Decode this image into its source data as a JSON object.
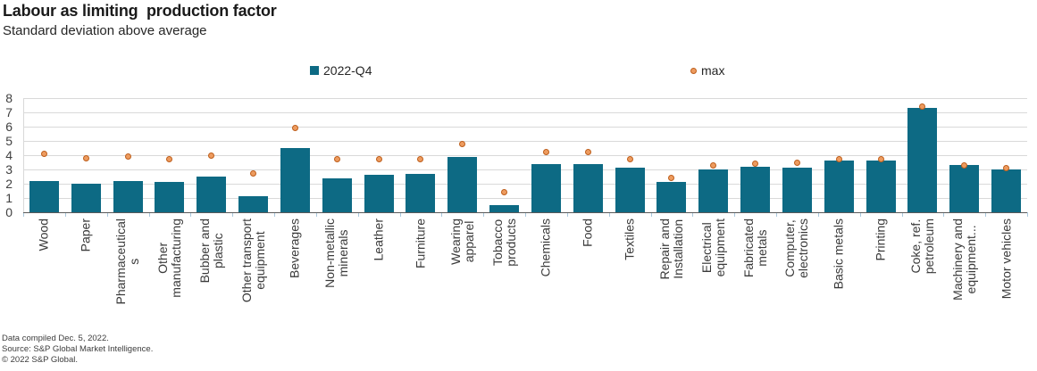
{
  "title": "Labour as limiting  production factor",
  "subtitle": "Standard deviation above average",
  "legend": {
    "series1_label": "2022-Q4",
    "series2_label": "max"
  },
  "colors": {
    "bar": "#0d6a84",
    "dot_fill": "#ed9b5f",
    "dot_border": "#bd5e1b",
    "gridline": "#d9d9d9",
    "axis": "#595959"
  },
  "footer": {
    "line1": "Data compiled Dec. 5, 2022.",
    "line2": "Source: S&P Global Market Intelligence.",
    "line3": "© 2022 S&P Global."
  },
  "chart_data": {
    "type": "bar",
    "title": "Labour as limiting production factor",
    "subtitle": "Standard deviation above average",
    "xlabel": "",
    "ylabel": "Standard deviation above average",
    "ylim": [
      0,
      8
    ],
    "yticks": [
      0,
      1,
      2,
      3,
      4,
      5,
      6,
      7,
      8
    ],
    "grid": true,
    "legend_position": "top",
    "categories": [
      "Wood",
      "Paper",
      "Pharmaceuticals",
      "Other manufacturing",
      "Bubber and plastic",
      "Other transport equipment",
      "Beverages",
      "Non-metallic minerals",
      "Leather",
      "Furniture",
      "Wearing apparel",
      "Tobacco products",
      "Chemicals",
      "Food",
      "Textiles",
      "Repair and Installation",
      "Electrical equipment",
      "Fabricated metals",
      "Computer, electronics",
      "Basic metals",
      "Printing",
      "Coke, ref. petroleum",
      "Machinery and equipment...",
      "Motor vehicles"
    ],
    "categories_wrapped": [
      "Wood",
      "Paper",
      "Pharmaceutical\ns",
      "Other\nmanufacturing",
      "Bubber and\nplastic",
      "Other transport\nequipment",
      "Beverages",
      "Non-metallic\nminerals",
      "Leather",
      "Furniture",
      "Wearing\napparel",
      "Tobacco\nproducts",
      "Chemicals",
      "Food",
      "Textiles",
      "Repair and\nInstallation",
      "Electrical\nequipment",
      "Fabricated\nmetals",
      "Computer,\nelectronics",
      "Basic metals",
      "Printing",
      "Coke, ref.\npetroleum",
      "Machinery and\nequipment...",
      "Motor vehicles"
    ],
    "series": [
      {
        "name": "2022-Q4",
        "type": "bar",
        "color": "#0d6a84",
        "values": [
          2.2,
          2.0,
          2.2,
          2.1,
          2.5,
          1.1,
          4.5,
          2.4,
          2.6,
          2.7,
          3.9,
          0.5,
          3.4,
          3.4,
          3.1,
          2.1,
          3.0,
          3.2,
          3.1,
          3.6,
          3.6,
          7.3,
          3.3,
          3.0
        ]
      },
      {
        "name": "max",
        "type": "point",
        "color": "#ed9b5f",
        "values": [
          4.1,
          3.8,
          3.9,
          3.7,
          4.0,
          2.7,
          5.9,
          3.7,
          3.7,
          3.7,
          4.8,
          1.4,
          4.2,
          4.2,
          3.7,
          2.4,
          3.3,
          3.4,
          3.5,
          3.7,
          3.7,
          7.4,
          3.3,
          3.1
        ]
      }
    ]
  }
}
